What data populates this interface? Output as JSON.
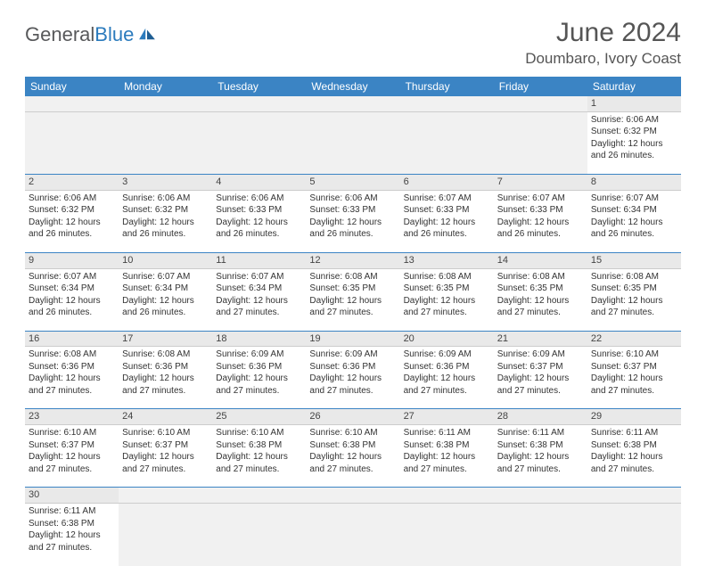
{
  "logo": {
    "text1": "General",
    "text2": "Blue"
  },
  "title": "June 2024",
  "location": "Doumbaro, Ivory Coast",
  "colors": {
    "header_bg": "#3b84c4",
    "header_fg": "#ffffff",
    "daynum_bg": "#e9e9e9",
    "row_border": "#3b84c4",
    "logo_gray": "#58595b",
    "logo_blue": "#2b7bbd"
  },
  "weekdays": [
    "Sunday",
    "Monday",
    "Tuesday",
    "Wednesday",
    "Thursday",
    "Friday",
    "Saturday"
  ],
  "weeks": [
    {
      "nums": [
        "",
        "",
        "",
        "",
        "",
        "",
        "1"
      ],
      "cells": [
        null,
        null,
        null,
        null,
        null,
        null,
        {
          "sunrise": "Sunrise: 6:06 AM",
          "sunset": "Sunset: 6:32 PM",
          "day1": "Daylight: 12 hours",
          "day2": "and 26 minutes."
        }
      ]
    },
    {
      "nums": [
        "2",
        "3",
        "4",
        "5",
        "6",
        "7",
        "8"
      ],
      "cells": [
        {
          "sunrise": "Sunrise: 6:06 AM",
          "sunset": "Sunset: 6:32 PM",
          "day1": "Daylight: 12 hours",
          "day2": "and 26 minutes."
        },
        {
          "sunrise": "Sunrise: 6:06 AM",
          "sunset": "Sunset: 6:32 PM",
          "day1": "Daylight: 12 hours",
          "day2": "and 26 minutes."
        },
        {
          "sunrise": "Sunrise: 6:06 AM",
          "sunset": "Sunset: 6:33 PM",
          "day1": "Daylight: 12 hours",
          "day2": "and 26 minutes."
        },
        {
          "sunrise": "Sunrise: 6:06 AM",
          "sunset": "Sunset: 6:33 PM",
          "day1": "Daylight: 12 hours",
          "day2": "and 26 minutes."
        },
        {
          "sunrise": "Sunrise: 6:07 AM",
          "sunset": "Sunset: 6:33 PM",
          "day1": "Daylight: 12 hours",
          "day2": "and 26 minutes."
        },
        {
          "sunrise": "Sunrise: 6:07 AM",
          "sunset": "Sunset: 6:33 PM",
          "day1": "Daylight: 12 hours",
          "day2": "and 26 minutes."
        },
        {
          "sunrise": "Sunrise: 6:07 AM",
          "sunset": "Sunset: 6:34 PM",
          "day1": "Daylight: 12 hours",
          "day2": "and 26 minutes."
        }
      ]
    },
    {
      "nums": [
        "9",
        "10",
        "11",
        "12",
        "13",
        "14",
        "15"
      ],
      "cells": [
        {
          "sunrise": "Sunrise: 6:07 AM",
          "sunset": "Sunset: 6:34 PM",
          "day1": "Daylight: 12 hours",
          "day2": "and 26 minutes."
        },
        {
          "sunrise": "Sunrise: 6:07 AM",
          "sunset": "Sunset: 6:34 PM",
          "day1": "Daylight: 12 hours",
          "day2": "and 26 minutes."
        },
        {
          "sunrise": "Sunrise: 6:07 AM",
          "sunset": "Sunset: 6:34 PM",
          "day1": "Daylight: 12 hours",
          "day2": "and 27 minutes."
        },
        {
          "sunrise": "Sunrise: 6:08 AM",
          "sunset": "Sunset: 6:35 PM",
          "day1": "Daylight: 12 hours",
          "day2": "and 27 minutes."
        },
        {
          "sunrise": "Sunrise: 6:08 AM",
          "sunset": "Sunset: 6:35 PM",
          "day1": "Daylight: 12 hours",
          "day2": "and 27 minutes."
        },
        {
          "sunrise": "Sunrise: 6:08 AM",
          "sunset": "Sunset: 6:35 PM",
          "day1": "Daylight: 12 hours",
          "day2": "and 27 minutes."
        },
        {
          "sunrise": "Sunrise: 6:08 AM",
          "sunset": "Sunset: 6:35 PM",
          "day1": "Daylight: 12 hours",
          "day2": "and 27 minutes."
        }
      ]
    },
    {
      "nums": [
        "16",
        "17",
        "18",
        "19",
        "20",
        "21",
        "22"
      ],
      "cells": [
        {
          "sunrise": "Sunrise: 6:08 AM",
          "sunset": "Sunset: 6:36 PM",
          "day1": "Daylight: 12 hours",
          "day2": "and 27 minutes."
        },
        {
          "sunrise": "Sunrise: 6:08 AM",
          "sunset": "Sunset: 6:36 PM",
          "day1": "Daylight: 12 hours",
          "day2": "and 27 minutes."
        },
        {
          "sunrise": "Sunrise: 6:09 AM",
          "sunset": "Sunset: 6:36 PM",
          "day1": "Daylight: 12 hours",
          "day2": "and 27 minutes."
        },
        {
          "sunrise": "Sunrise: 6:09 AM",
          "sunset": "Sunset: 6:36 PM",
          "day1": "Daylight: 12 hours",
          "day2": "and 27 minutes."
        },
        {
          "sunrise": "Sunrise: 6:09 AM",
          "sunset": "Sunset: 6:36 PM",
          "day1": "Daylight: 12 hours",
          "day2": "and 27 minutes."
        },
        {
          "sunrise": "Sunrise: 6:09 AM",
          "sunset": "Sunset: 6:37 PM",
          "day1": "Daylight: 12 hours",
          "day2": "and 27 minutes."
        },
        {
          "sunrise": "Sunrise: 6:10 AM",
          "sunset": "Sunset: 6:37 PM",
          "day1": "Daylight: 12 hours",
          "day2": "and 27 minutes."
        }
      ]
    },
    {
      "nums": [
        "23",
        "24",
        "25",
        "26",
        "27",
        "28",
        "29"
      ],
      "cells": [
        {
          "sunrise": "Sunrise: 6:10 AM",
          "sunset": "Sunset: 6:37 PM",
          "day1": "Daylight: 12 hours",
          "day2": "and 27 minutes."
        },
        {
          "sunrise": "Sunrise: 6:10 AM",
          "sunset": "Sunset: 6:37 PM",
          "day1": "Daylight: 12 hours",
          "day2": "and 27 minutes."
        },
        {
          "sunrise": "Sunrise: 6:10 AM",
          "sunset": "Sunset: 6:38 PM",
          "day1": "Daylight: 12 hours",
          "day2": "and 27 minutes."
        },
        {
          "sunrise": "Sunrise: 6:10 AM",
          "sunset": "Sunset: 6:38 PM",
          "day1": "Daylight: 12 hours",
          "day2": "and 27 minutes."
        },
        {
          "sunrise": "Sunrise: 6:11 AM",
          "sunset": "Sunset: 6:38 PM",
          "day1": "Daylight: 12 hours",
          "day2": "and 27 minutes."
        },
        {
          "sunrise": "Sunrise: 6:11 AM",
          "sunset": "Sunset: 6:38 PM",
          "day1": "Daylight: 12 hours",
          "day2": "and 27 minutes."
        },
        {
          "sunrise": "Sunrise: 6:11 AM",
          "sunset": "Sunset: 6:38 PM",
          "day1": "Daylight: 12 hours",
          "day2": "and 27 minutes."
        }
      ]
    },
    {
      "nums": [
        "30",
        "",
        "",
        "",
        "",
        "",
        ""
      ],
      "cells": [
        {
          "sunrise": "Sunrise: 6:11 AM",
          "sunset": "Sunset: 6:38 PM",
          "day1": "Daylight: 12 hours",
          "day2": "and 27 minutes."
        },
        null,
        null,
        null,
        null,
        null,
        null
      ]
    }
  ]
}
